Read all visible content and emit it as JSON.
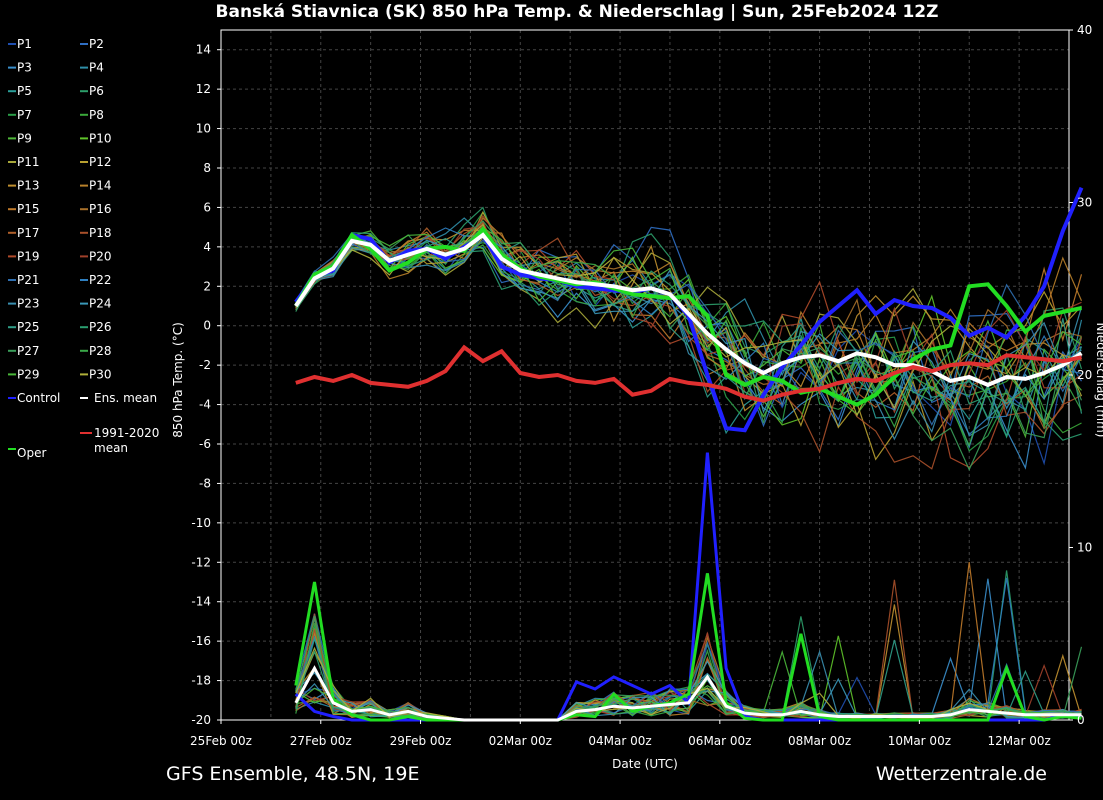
{
  "chart_data": {
    "type": "line",
    "title": "Banská Stiavnica  (SK)  850 hPa Temp. & Niederschlag | Sun, 25Feb2024 12Z",
    "ylabel": "850 hPa Temp. (°C)",
    "ylabel_right": "Niederschlag (mm)",
    "xlabel": "Date (UTC)",
    "ylim": [
      -20,
      15
    ],
    "ylim_right": [
      0,
      40
    ],
    "x_ticks": [
      "25Feb 00z",
      "27Feb 00z",
      "29Feb 00z",
      "02Mar 00z",
      "04Mar 00z",
      "06Mar 00z",
      "08Mar 00z",
      "10Mar 00z",
      "12Mar 00z"
    ],
    "y_ticks": [
      14,
      12,
      10,
      8,
      6,
      4,
      2,
      0,
      -2,
      -4,
      -6,
      -8,
      -10,
      -12,
      -14,
      -16,
      -18,
      -20
    ],
    "y_ticks_right": [
      40,
      30,
      20,
      10,
      0
    ],
    "x_days": [
      0,
      17
    ],
    "footer_left": "GFS Ensemble, 48.5N, 19E",
    "footer_right": "Wetterzentrale.de",
    "grid": true,
    "legend_position": "left-outside",
    "member_colors": [
      "#1f4fb0",
      "#2f6fc4",
      "#3a8fcc",
      "#2f8fa8",
      "#2a9e98",
      "#2c9e6a",
      "#2a9e48",
      "#3aa83a",
      "#4fb83a",
      "#5fc42a",
      "#a8a83a",
      "#b8a030",
      "#c09030",
      "#b8802a",
      "#c07a2a",
      "#a8702a",
      "#b0602a",
      "#a8502a",
      "#b04a2a",
      "#a0402a",
      "#2f6fb0",
      "#2f7fc0",
      "#3a8fb0",
      "#3a98b8",
      "#2f9e88",
      "#2a9e70",
      "#3a9e5a",
      "#3aa848",
      "#4ab83a",
      "#b0b03a"
    ],
    "series": [
      {
        "name": "Control",
        "color": "#2020ff",
        "width": 4,
        "temp": [
          1.2,
          2.5,
          2.8,
          4.6,
          4.4,
          3.2,
          3.8,
          3.9,
          3.4,
          4.0,
          4.6,
          3.0,
          2.6,
          2.4,
          2.3,
          2.0,
          1.9,
          1.8,
          1.7,
          1.9,
          1.6,
          0.5,
          -2.5,
          -5.2,
          -5.3,
          -3.5,
          -2.1,
          -1.0,
          0.2,
          1.0,
          1.8,
          0.6,
          1.3,
          1.0,
          0.9,
          0.4,
          -0.5,
          -0.1,
          -0.6,
          0.5,
          2.0,
          4.8,
          7.0
        ],
        "precip": [
          1.5,
          0.5,
          0.2,
          0,
          0,
          0,
          0,
          0,
          0,
          0,
          0,
          0,
          0,
          0,
          0,
          2.2,
          1.8,
          2.5,
          2.0,
          1.5,
          2.0,
          1.0,
          15.5,
          3.0,
          0.2,
          0,
          0,
          0,
          0,
          0,
          0,
          0,
          0,
          0,
          0,
          0,
          0,
          0,
          0,
          0,
          0,
          0.3,
          0.2
        ]
      },
      {
        "name": "Oper",
        "color": "#22dd22",
        "width": 4,
        "temp": [
          1.0,
          2.6,
          3.0,
          4.6,
          3.9,
          2.8,
          3.2,
          3.9,
          4.0,
          3.8,
          4.9,
          3.6,
          2.9,
          2.5,
          2.3,
          2.1,
          2.2,
          1.9,
          1.6,
          1.5,
          1.4,
          1.5,
          0.5,
          -2.5,
          -3.0,
          -2.6,
          -2.8,
          -3.4,
          -3.2,
          -3.6,
          -4.0,
          -3.5,
          -2.6,
          -1.7,
          -1.2,
          -1.0,
          2.0,
          2.1,
          1.0,
          -0.3,
          0.5,
          0.7,
          0.9
        ],
        "precip": [
          2.0,
          8.0,
          1.2,
          0.3,
          0,
          0,
          0.2,
          0,
          0,
          0,
          0,
          0,
          0,
          0,
          0,
          0.3,
          0.2,
          1.5,
          0.5,
          0.8,
          1.0,
          1.5,
          8.5,
          1.0,
          0.1,
          0,
          0,
          5.0,
          0.2,
          0,
          0,
          0,
          0,
          0,
          0,
          0,
          0,
          0,
          3.0,
          0.2,
          0,
          0.2,
          0.1
        ]
      },
      {
        "name": "Ens. mean",
        "color": "#ffffff",
        "width": 4,
        "temp": [
          1.0,
          2.4,
          2.9,
          4.3,
          4.1,
          3.3,
          3.6,
          3.9,
          3.6,
          3.9,
          4.6,
          3.4,
          2.8,
          2.6,
          2.4,
          2.2,
          2.1,
          2.0,
          1.8,
          1.9,
          1.6,
          0.6,
          -0.4,
          -1.2,
          -1.9,
          -2.4,
          -1.9,
          -1.6,
          -1.5,
          -1.8,
          -1.4,
          -1.6,
          -2.0,
          -2.0,
          -2.3,
          -2.8,
          -2.6,
          -3.0,
          -2.6,
          -2.7,
          -2.4,
          -2.0,
          -1.4
        ],
        "precip": [
          1.0,
          3.0,
          1.0,
          0.5,
          0.6,
          0.3,
          0.5,
          0.2,
          0.1,
          0,
          0,
          0,
          0,
          0,
          0,
          0.5,
          0.6,
          0.8,
          0.7,
          0.8,
          0.9,
          1.0,
          2.5,
          0.8,
          0.4,
          0.3,
          0.3,
          0.5,
          0.3,
          0.2,
          0.2,
          0.2,
          0.2,
          0.2,
          0.2,
          0.3,
          0.6,
          0.5,
          0.4,
          0.3,
          0.3,
          0.3,
          0.3
        ]
      },
      {
        "name": "1991-2020 mean",
        "color": "#e03030",
        "width": 4,
        "temp": [
          -2.9,
          -2.6,
          -2.8,
          -2.5,
          -2.9,
          -3.0,
          -3.1,
          -2.8,
          -2.3,
          -1.1,
          -1.8,
          -1.3,
          -2.4,
          -2.6,
          -2.5,
          -2.8,
          -2.9,
          -2.7,
          -3.5,
          -3.3,
          -2.7,
          -2.9,
          -3.0,
          -3.2,
          -3.6,
          -3.8,
          -3.5,
          -3.3,
          -3.2,
          -2.9,
          -2.7,
          -2.8,
          -2.4,
          -2.1,
          -2.3,
          -2.0,
          -1.9,
          -2.0,
          -1.5,
          -1.6,
          -1.7,
          -1.8,
          -1.6
        ],
        "precip": []
      }
    ],
    "legend": [
      "P1",
      "P2",
      "P3",
      "P4",
      "P5",
      "P6",
      "P7",
      "P8",
      "P9",
      "P10",
      "P11",
      "P12",
      "P13",
      "P14",
      "P15",
      "P16",
      "P17",
      "P18",
      "P19",
      "P20",
      "P21",
      "P22",
      "P23",
      "P24",
      "P25",
      "P26",
      "P27",
      "P28",
      "P29",
      "P30",
      "Control",
      "Ens. mean",
      "1991-2020 mean",
      "Oper"
    ]
  }
}
